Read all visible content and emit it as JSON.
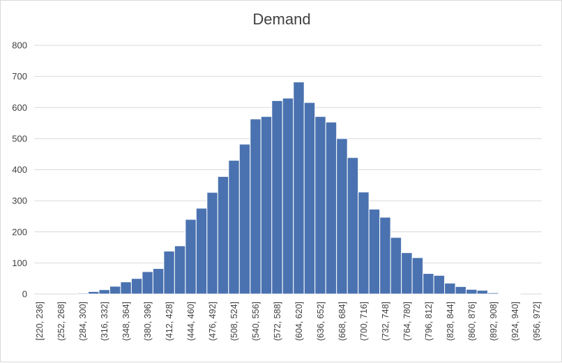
{
  "chart_data": {
    "type": "bar",
    "title": "Demand",
    "xlabel": "",
    "ylabel": "",
    "ylim": [
      0,
      800
    ],
    "yticks": [
      0,
      100,
      200,
      300,
      400,
      500,
      600,
      700,
      800
    ],
    "grid": true,
    "legend": "none",
    "bar_color": "#4a72b0",
    "categories": [
      "[220, 236]",
      "(236, 252]",
      "(252, 268]",
      "(268, 284]",
      "(284, 300]",
      "(300, 316]",
      "(316, 332]",
      "(332, 348]",
      "(348, 364]",
      "(364, 380]",
      "(380, 396]",
      "(396, 412]",
      "(412, 428]",
      "(428, 444]",
      "(444, 460]",
      "(460, 476]",
      "(476, 492]",
      "(492, 508]",
      "(508, 524]",
      "(524, 540]",
      "(540, 556]",
      "(556, 572]",
      "(572, 588]",
      "(588, 604]",
      "(604, 620]",
      "(620, 636]",
      "(636, 652]",
      "(652, 668]",
      "(668, 684]",
      "(684, 700]",
      "(700, 716]",
      "(716, 732]",
      "(732, 748]",
      "(748, 764]",
      "(764, 780]",
      "(780, 796]",
      "(796, 812]",
      "(812, 828]",
      "(828, 844]",
      "(844, 860]",
      "(860, 876]",
      "(876, 892]",
      "(892, 908]",
      "(908, 924]",
      "(924, 940]",
      "(940, 956]",
      "(956, 972]"
    ],
    "values": [
      0,
      0,
      0,
      0,
      3,
      8,
      14,
      25,
      39,
      50,
      72,
      82,
      138,
      155,
      240,
      276,
      327,
      378,
      430,
      482,
      563,
      571,
      622,
      630,
      682,
      616,
      571,
      553,
      500,
      439,
      328,
      273,
      247,
      182,
      133,
      117,
      66,
      60,
      35,
      24,
      15,
      12,
      4,
      1,
      1,
      0,
      0
    ],
    "label_every": 2
  }
}
